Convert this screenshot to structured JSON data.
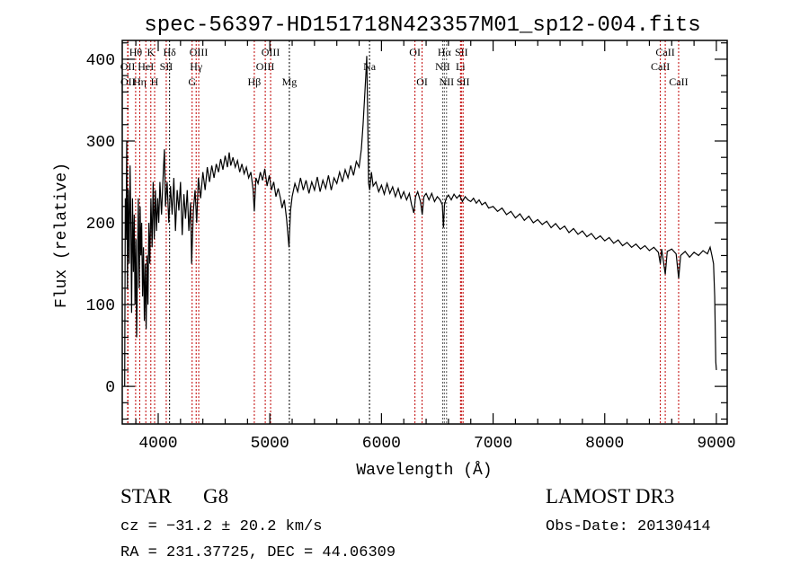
{
  "chart_data": {
    "type": "line",
    "title": "spec-56397-HD151718N423357M01_sp12-004.fits",
    "xlabel": "Wavelength (Å)",
    "ylabel": "Flux (relative)",
    "xlim": [
      3678,
      9097
    ],
    "ylim": [
      -46,
      423
    ],
    "xticks": [
      4000,
      5000,
      6000,
      7000,
      8000,
      9000
    ],
    "yticks": [
      0,
      100,
      200,
      300,
      400
    ],
    "grid": false,
    "series": [
      {
        "name": "spectrum",
        "color": "#000000",
        "x": [
          3700,
          3705,
          3712,
          3718,
          3725,
          3732,
          3740,
          3748,
          3755,
          3762,
          3770,
          3778,
          3785,
          3792,
          3800,
          3807,
          3815,
          3822,
          3830,
          3838,
          3845,
          3852,
          3860,
          3868,
          3876,
          3884,
          3892,
          3900,
          3908,
          3916,
          3925,
          3935,
          3945,
          3955,
          3965,
          3975,
          3985,
          3995,
          4005,
          4015,
          4030,
          4045,
          4056,
          4065,
          4080,
          4095,
          4110,
          4125,
          4140,
          4155,
          4170,
          4185,
          4200,
          4215,
          4230,
          4245,
          4260,
          4275,
          4290,
          4300,
          4315,
          4330,
          4345,
          4360,
          4380,
          4400,
          4420,
          4440,
          4460,
          4480,
          4500,
          4520,
          4540,
          4560,
          4580,
          4600,
          4620,
          4636,
          4650,
          4670,
          4690,
          4710,
          4730,
          4750,
          4770,
          4790,
          4810,
          4830,
          4850,
          4861,
          4875,
          4895,
          4915,
          4935,
          4955,
          4975,
          4995,
          5015,
          5035,
          5055,
          5075,
          5095,
          5110,
          5130,
          5150,
          5172,
          5185,
          5200,
          5225,
          5250,
          5275,
          5300,
          5325,
          5350,
          5375,
          5400,
          5425,
          5450,
          5475,
          5500,
          5525,
          5550,
          5575,
          5600,
          5625,
          5650,
          5675,
          5700,
          5725,
          5750,
          5775,
          5800,
          5820,
          5835,
          5850,
          5862,
          5868,
          5875,
          5885,
          5895,
          5910,
          5925,
          5950,
          5975,
          6000,
          6025,
          6050,
          6075,
          6100,
          6125,
          6150,
          6175,
          6200,
          6225,
          6250,
          6270,
          6290,
          6305,
          6325,
          6350,
          6365,
          6380,
          6400,
          6425,
          6450,
          6475,
          6500,
          6525,
          6545,
          6555,
          6565,
          6580,
          6600,
          6625,
          6650,
          6675,
          6700,
          6725,
          6750,
          6775,
          6800,
          6825,
          6850,
          6875,
          6900,
          6930,
          6960,
          7000,
          7040,
          7080,
          7120,
          7160,
          7200,
          7240,
          7280,
          7320,
          7360,
          7400,
          7440,
          7480,
          7520,
          7560,
          7600,
          7640,
          7680,
          7720,
          7760,
          7800,
          7840,
          7880,
          7920,
          7960,
          8000,
          8040,
          8080,
          8120,
          8160,
          8200,
          8240,
          8280,
          8320,
          8360,
          8400,
          8440,
          8480,
          8498,
          8510,
          8542,
          8560,
          8600,
          8640,
          8662,
          8680,
          8720,
          8760,
          8800,
          8840,
          8880,
          8920,
          8944,
          8960,
          8975,
          8985,
          8995,
          9000
        ],
        "y": [
          0,
          230,
          180,
          300,
          120,
          240,
          150,
          270,
          200,
          90,
          230,
          140,
          210,
          100,
          180,
          60,
          150,
          230,
          120,
          220,
          160,
          200,
          110,
          170,
          80,
          150,
          70,
          160,
          100,
          200,
          150,
          230,
          170,
          250,
          180,
          240,
          190,
          230,
          200,
          250,
          210,
          260,
          290,
          220,
          250,
          200,
          245,
          210,
          255,
          190,
          240,
          215,
          250,
          185,
          235,
          205,
          240,
          190,
          225,
          150,
          215,
          240,
          200,
          255,
          230,
          262,
          240,
          268,
          250,
          270,
          255,
          272,
          262,
          278,
          265,
          282,
          268,
          286,
          270,
          280,
          268,
          276,
          262,
          272,
          260,
          268,
          255,
          262,
          240,
          214,
          255,
          248,
          262,
          252,
          266,
          245,
          258,
          240,
          250,
          232,
          242,
          230,
          218,
          228,
          205,
          170,
          215,
          232,
          248,
          238,
          255,
          240,
          252,
          236,
          250,
          240,
          256,
          238,
          252,
          242,
          258,
          240,
          255,
          248,
          262,
          250,
          265,
          255,
          270,
          258,
          275,
          268,
          290,
          320,
          355,
          385,
          404,
          340,
          248,
          240,
          262,
          245,
          250,
          238,
          246,
          235,
          248,
          236,
          244,
          232,
          242,
          230,
          238,
          228,
          236,
          222,
          212,
          232,
          238,
          226,
          210,
          232,
          236,
          228,
          236,
          226,
          232,
          228,
          222,
          194,
          222,
          230,
          234,
          228,
          235,
          230,
          234,
          226,
          232,
          228,
          226,
          230,
          224,
          228,
          222,
          225,
          218,
          220,
          214,
          218,
          210,
          214,
          206,
          211,
          203,
          208,
          200,
          204,
          198,
          202,
          194,
          199,
          192,
          196,
          188,
          193,
          186,
          190,
          183,
          187,
          180,
          184,
          178,
          182,
          175,
          179,
          172,
          176,
          170,
          174,
          168,
          172,
          166,
          170,
          164,
          150,
          168,
          137,
          165,
          168,
          162,
          132,
          160,
          165,
          158,
          164,
          160,
          166,
          162,
          170,
          160,
          150,
          110,
          30,
          20
        ]
      }
    ],
    "line_markers": [
      {
        "label": "OII",
        "wavelength": 3727,
        "row": 2,
        "color": "#c00000"
      },
      {
        "label": "OII",
        "wavelength": 3729,
        "row": 3,
        "color": "#c00000"
      },
      {
        "label": "Hθ",
        "wavelength": 3798,
        "row": 1,
        "color": "#c00000"
      },
      {
        "label": "Hη",
        "wavelength": 3835,
        "row": 3,
        "color": "#c00000"
      },
      {
        "label": "HeI",
        "wavelength": 3889,
        "row": 2,
        "color": "#c00000"
      },
      {
        "label": "K",
        "wavelength": 3934,
        "row": 1,
        "color": "#c00000"
      },
      {
        "label": "H",
        "wavelength": 3968,
        "row": 3,
        "color": "#c00000"
      },
      {
        "label": "SII",
        "wavelength": 4072,
        "row": 2,
        "color": "#c00000"
      },
      {
        "label": "Hδ",
        "wavelength": 4102,
        "row": 1,
        "color": "#000000"
      },
      {
        "label": "G",
        "wavelength": 4304,
        "row": 3,
        "color": "#c00000"
      },
      {
        "label": "Hγ",
        "wavelength": 4340,
        "row": 2,
        "color": "#c00000"
      },
      {
        "label": "OIII",
        "wavelength": 4363,
        "row": 1,
        "color": "#c00000"
      },
      {
        "label": "Hβ",
        "wavelength": 4861,
        "row": 3,
        "color": "#c00000"
      },
      {
        "label": "OIII",
        "wavelength": 4959,
        "row": 2,
        "color": "#c00000"
      },
      {
        "label": "OIII",
        "wavelength": 5007,
        "row": 1,
        "color": "#c00000"
      },
      {
        "label": "Mg",
        "wavelength": 5175,
        "row": 3,
        "color": "#000000"
      },
      {
        "label": "Na",
        "wavelength": 5893,
        "row": 2,
        "color": "#000000"
      },
      {
        "label": "OI",
        "wavelength": 6300,
        "row": 1,
        "color": "#c00000"
      },
      {
        "label": "OI",
        "wavelength": 6364,
        "row": 3,
        "color": "#c00000"
      },
      {
        "label": "NII",
        "wavelength": 6548,
        "row": 2,
        "color": "#555555"
      },
      {
        "label": "Hα",
        "wavelength": 6563,
        "row": 1,
        "color": "#555555"
      },
      {
        "label": "NII",
        "wavelength": 6583,
        "row": 3,
        "color": "#555555"
      },
      {
        "label": "Li",
        "wavelength": 6708,
        "row": 2,
        "color": "#c00000"
      },
      {
        "label": "SII",
        "wavelength": 6716,
        "row": 1,
        "color": "#c00000"
      },
      {
        "label": "SII",
        "wavelength": 6731,
        "row": 3,
        "color": "#c00000"
      },
      {
        "label": "CaII",
        "wavelength": 8498,
        "row": 2,
        "color": "#c00000"
      },
      {
        "label": "CaII",
        "wavelength": 8542,
        "row": 1,
        "color": "#c00000"
      },
      {
        "label": "CaII",
        "wavelength": 8662,
        "row": 3,
        "color": "#c00000"
      }
    ]
  },
  "info": {
    "object_class": "STAR",
    "subclass": "G8",
    "survey": "LAMOST DR3",
    "redshift": "cz = −31.2 ± 20.2 km/s",
    "obs_date": "Obs-Date: 20130414",
    "coords": "RA = 231.37725, DEC =  44.06309"
  }
}
